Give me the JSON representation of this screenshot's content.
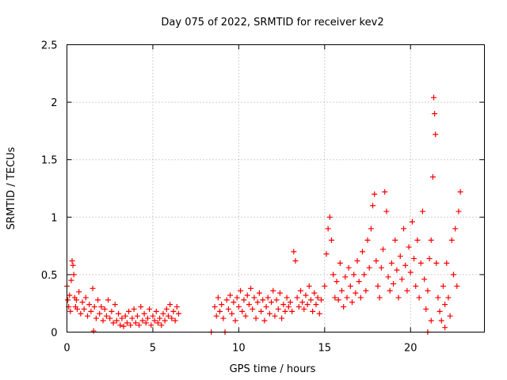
{
  "chart_data": {
    "type": "scatter",
    "title": "Day 075 of 2022, SRMTID for receiver kev2",
    "xlabel": "GPS time / hours",
    "ylabel": "SRMTID / TECUs",
    "xlim": [
      0,
      24.3
    ],
    "ylim": [
      0,
      2.5
    ],
    "x_ticks": [
      0,
      5,
      10,
      15,
      20
    ],
    "x_tick_labels": [
      "0",
      "5",
      "10",
      "15",
      "20"
    ],
    "y_ticks": [
      0,
      0.5,
      1,
      1.5,
      2,
      2.5
    ],
    "y_tick_labels": [
      "0",
      "0.5",
      "1",
      "1.5",
      "2",
      "2.5"
    ],
    "grid": true,
    "marker": "+",
    "series": [
      {
        "name": "SRMTID",
        "color": "#ff0000",
        "points": [
          [
            0.0,
            0.4
          ],
          [
            0.05,
            0.28
          ],
          [
            0.1,
            0.22
          ],
          [
            0.15,
            0.32
          ],
          [
            0.2,
            0.18
          ],
          [
            0.25,
            0.45
          ],
          [
            0.3,
            0.62
          ],
          [
            0.35,
            0.58
          ],
          [
            0.4,
            0.5
          ],
          [
            0.45,
            0.3
          ],
          [
            0.5,
            0.22
          ],
          [
            0.55,
            0.28
          ],
          [
            0.6,
            0.2
          ],
          [
            0.7,
            0.35
          ],
          [
            0.8,
            0.16
          ],
          [
            0.9,
            0.26
          ],
          [
            1.0,
            0.2
          ],
          [
            1.1,
            0.3
          ],
          [
            1.2,
            0.14
          ],
          [
            1.3,
            0.24
          ],
          [
            1.4,
            0.18
          ],
          [
            1.5,
            0.38
          ],
          [
            1.55,
            0.01
          ],
          [
            1.6,
            0.22
          ],
          [
            1.7,
            0.12
          ],
          [
            1.8,
            0.28
          ],
          [
            1.9,
            0.16
          ],
          [
            2.0,
            0.22
          ],
          [
            2.1,
            0.1
          ],
          [
            2.2,
            0.2
          ],
          [
            2.3,
            0.14
          ],
          [
            2.4,
            0.28
          ],
          [
            2.5,
            0.12
          ],
          [
            2.6,
            0.18
          ],
          [
            2.7,
            0.08
          ],
          [
            2.8,
            0.24
          ],
          [
            2.9,
            0.1
          ],
          [
            3.0,
            0.16
          ],
          [
            3.1,
            0.06
          ],
          [
            3.2,
            0.12
          ],
          [
            3.3,
            0.05
          ],
          [
            3.4,
            0.14
          ],
          [
            3.5,
            0.08
          ],
          [
            3.6,
            0.18
          ],
          [
            3.7,
            0.06
          ],
          [
            3.8,
            0.12
          ],
          [
            3.9,
            0.2
          ],
          [
            4.0,
            0.08
          ],
          [
            4.1,
            0.14
          ],
          [
            4.2,
            0.06
          ],
          [
            4.3,
            0.22
          ],
          [
            4.4,
            0.1
          ],
          [
            4.5,
            0.16
          ],
          [
            4.6,
            0.08
          ],
          [
            4.7,
            0.12
          ],
          [
            4.8,
            0.2
          ],
          [
            4.9,
            0.06
          ],
          [
            5.0,
            0.14
          ],
          [
            5.1,
            0.1
          ],
          [
            5.2,
            0.18
          ],
          [
            5.3,
            0.08
          ],
          [
            5.4,
            0.12
          ],
          [
            5.5,
            0.06
          ],
          [
            5.6,
            0.16
          ],
          [
            5.7,
            0.1
          ],
          [
            5.8,
            0.2
          ],
          [
            5.9,
            0.14
          ],
          [
            6.0,
            0.24
          ],
          [
            6.1,
            0.12
          ],
          [
            6.2,
            0.18
          ],
          [
            6.3,
            0.1
          ],
          [
            6.4,
            0.22
          ],
          [
            6.5,
            0.16
          ],
          [
            8.4,
            0.0
          ],
          [
            9.2,
            0.0
          ],
          [
            8.6,
            0.22
          ],
          [
            8.7,
            0.14
          ],
          [
            8.8,
            0.3
          ],
          [
            8.9,
            0.18
          ],
          [
            9.0,
            0.24
          ],
          [
            9.1,
            0.12
          ],
          [
            9.3,
            0.28
          ],
          [
            9.4,
            0.2
          ],
          [
            9.5,
            0.32
          ],
          [
            9.6,
            0.16
          ],
          [
            9.7,
            0.26
          ],
          [
            9.8,
            0.1
          ],
          [
            9.9,
            0.3
          ],
          [
            10.0,
            0.22
          ],
          [
            10.1,
            0.36
          ],
          [
            10.2,
            0.18
          ],
          [
            10.3,
            0.28
          ],
          [
            10.4,
            0.14
          ],
          [
            10.5,
            0.32
          ],
          [
            10.6,
            0.24
          ],
          [
            10.7,
            0.38
          ],
          [
            10.8,
            0.2
          ],
          [
            10.9,
            0.3
          ],
          [
            11.0,
            0.12
          ],
          [
            11.1,
            0.26
          ],
          [
            11.2,
            0.34
          ],
          [
            11.3,
            0.18
          ],
          [
            11.4,
            0.28
          ],
          [
            11.5,
            0.1
          ],
          [
            11.6,
            0.22
          ],
          [
            11.7,
            0.3
          ],
          [
            11.8,
            0.16
          ],
          [
            11.9,
            0.26
          ],
          [
            12.0,
            0.36
          ],
          [
            12.1,
            0.14
          ],
          [
            12.2,
            0.28
          ],
          [
            12.3,
            0.2
          ],
          [
            12.4,
            0.34
          ],
          [
            12.5,
            0.12
          ],
          [
            12.6,
            0.24
          ],
          [
            12.7,
            0.18
          ],
          [
            12.8,
            0.3
          ],
          [
            12.9,
            0.22
          ],
          [
            13.0,
            0.26
          ],
          [
            13.1,
            0.18
          ],
          [
            13.2,
            0.7
          ],
          [
            13.3,
            0.62
          ],
          [
            13.4,
            0.3
          ],
          [
            13.5,
            0.22
          ],
          [
            13.6,
            0.36
          ],
          [
            13.7,
            0.26
          ],
          [
            13.8,
            0.2
          ],
          [
            13.9,
            0.32
          ],
          [
            14.0,
            0.24
          ],
          [
            14.1,
            0.4
          ],
          [
            14.2,
            0.28
          ],
          [
            14.3,
            0.18
          ],
          [
            14.4,
            0.34
          ],
          [
            14.5,
            0.24
          ],
          [
            14.6,
            0.3
          ],
          [
            14.7,
            0.16
          ],
          [
            14.8,
            0.28
          ],
          [
            15.0,
            0.4
          ],
          [
            15.1,
            0.68
          ],
          [
            15.2,
            0.9
          ],
          [
            15.3,
            1.0
          ],
          [
            15.4,
            0.8
          ],
          [
            15.5,
            0.5
          ],
          [
            15.6,
            0.3
          ],
          [
            15.7,
            0.44
          ],
          [
            15.8,
            0.28
          ],
          [
            15.9,
            0.6
          ],
          [
            16.0,
            0.36
          ],
          [
            16.1,
            0.22
          ],
          [
            16.2,
            0.48
          ],
          [
            16.3,
            0.3
          ],
          [
            16.4,
            0.56
          ],
          [
            16.5,
            0.4
          ],
          [
            16.6,
            0.26
          ],
          [
            16.7,
            0.5
          ],
          [
            16.8,
            0.34
          ],
          [
            16.9,
            0.62
          ],
          [
            17.0,
            0.44
          ],
          [
            17.1,
            0.3
          ],
          [
            17.2,
            0.7
          ],
          [
            17.3,
            0.5
          ],
          [
            17.4,
            0.36
          ],
          [
            17.5,
            0.8
          ],
          [
            17.6,
            0.56
          ],
          [
            17.7,
            0.9
          ],
          [
            17.8,
            1.1
          ],
          [
            17.9,
            1.2
          ],
          [
            18.0,
            0.62
          ],
          [
            18.1,
            0.4
          ],
          [
            18.2,
            0.3
          ],
          [
            18.3,
            0.56
          ],
          [
            18.4,
            0.72
          ],
          [
            18.5,
            1.22
          ],
          [
            18.6,
            1.05
          ],
          [
            18.7,
            0.48
          ],
          [
            18.8,
            0.36
          ],
          [
            18.9,
            0.6
          ],
          [
            19.0,
            0.42
          ],
          [
            19.1,
            0.8
          ],
          [
            19.2,
            0.54
          ],
          [
            19.3,
            0.3
          ],
          [
            19.4,
            0.66
          ],
          [
            19.5,
            0.46
          ],
          [
            19.6,
            0.9
          ],
          [
            19.7,
            0.58
          ],
          [
            19.8,
            0.36
          ],
          [
            19.9,
            0.74
          ],
          [
            20.0,
            0.52
          ],
          [
            20.1,
            0.96
          ],
          [
            20.2,
            0.64
          ],
          [
            20.3,
            0.4
          ],
          [
            20.4,
            0.8
          ],
          [
            20.5,
            0.3
          ],
          [
            20.6,
            0.6
          ],
          [
            20.7,
            1.05
          ],
          [
            20.8,
            0.46
          ],
          [
            20.9,
            0.2
          ],
          [
            21.0,
            0.36
          ],
          [
            21.1,
            0.64
          ],
          [
            21.2,
            0.8
          ],
          [
            21.3,
            1.35
          ],
          [
            21.35,
            2.04
          ],
          [
            21.4,
            1.9
          ],
          [
            21.45,
            1.72
          ],
          [
            21.5,
            0.6
          ],
          [
            21.6,
            0.3
          ],
          [
            21.7,
            0.18
          ],
          [
            21.8,
            0.1
          ],
          [
            21.9,
            0.4
          ],
          [
            22.0,
            0.24
          ],
          [
            22.1,
            0.6
          ],
          [
            22.2,
            0.3
          ],
          [
            22.3,
            0.14
          ],
          [
            22.4,
            0.8
          ],
          [
            22.5,
            0.5
          ],
          [
            22.6,
            0.9
          ],
          [
            22.7,
            0.4
          ],
          [
            22.8,
            1.05
          ],
          [
            22.9,
            1.22
          ],
          [
            21.0,
            0.0
          ],
          [
            21.2,
            0.1
          ],
          [
            22.0,
            0.04
          ]
        ]
      }
    ]
  }
}
